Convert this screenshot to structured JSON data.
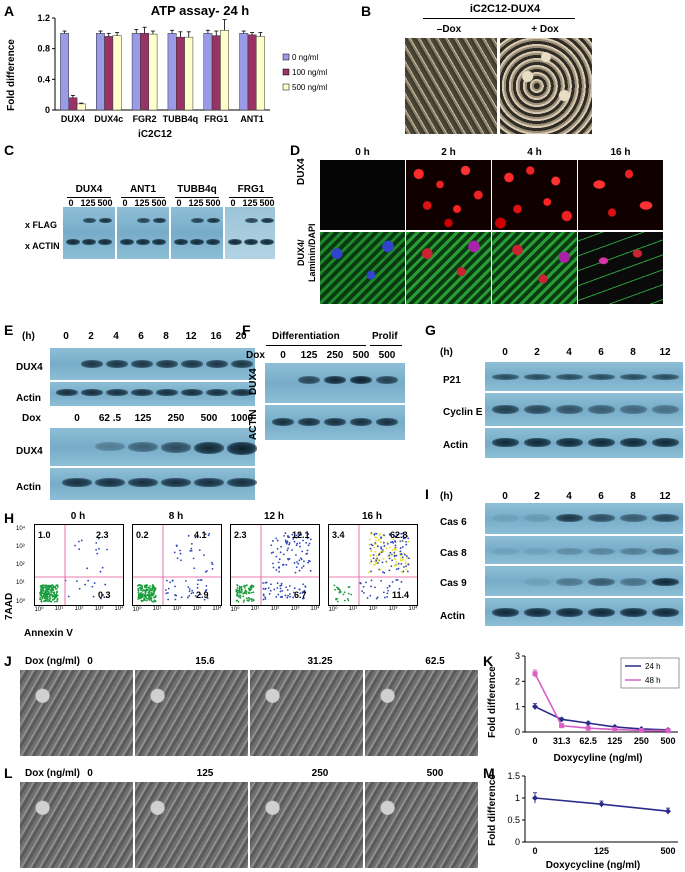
{
  "panels": {
    "A": {
      "label": "A"
    },
    "B": {
      "label": "B"
    },
    "C": {
      "label": "C"
    },
    "D": {
      "label": "D"
    },
    "E": {
      "label": "E"
    },
    "F": {
      "label": "F"
    },
    "G": {
      "label": "G"
    },
    "H": {
      "label": "H"
    },
    "I": {
      "label": "I"
    },
    "J": {
      "label": "J"
    },
    "K": {
      "label": "K"
    },
    "L": {
      "label": "L"
    },
    "M": {
      "label": "M"
    }
  },
  "chart_data": [
    {
      "panel": "A",
      "type": "bar",
      "title": "ATP assay- 24 h",
      "categories": [
        "DUX4",
        "DUX4c",
        "FGR2",
        "TUBB4q",
        "FRG1",
        "ANT1"
      ],
      "xlabel": "iC2C12",
      "ylabel": "Fold difference",
      "ylim": [
        0,
        1.2
      ],
      "yticks": [
        "0",
        "0.4",
        "0.8",
        "1.2"
      ],
      "legend": "right",
      "series": [
        {
          "name": "0 ng/ml",
          "color": "#9a9ae6",
          "values": [
            1.0,
            1.0,
            1.0,
            1.0,
            1.0,
            1.0
          ],
          "err": [
            0.03,
            0.03,
            0.05,
            0.04,
            0.04,
            0.03
          ]
        },
        {
          "name": "100 ng/ml",
          "color": "#993366",
          "values": [
            0.16,
            0.96,
            1.0,
            0.95,
            0.97,
            0.98
          ],
          "err": [
            0.03,
            0.04,
            0.08,
            0.07,
            0.06,
            0.03
          ]
        },
        {
          "name": "500 ng/ml",
          "color": "#ffffcc",
          "values": [
            0.08,
            0.97,
            0.99,
            0.95,
            1.04,
            0.96
          ],
          "err": [
            0.01,
            0.04,
            0.04,
            0.07,
            0.14,
            0.05
          ]
        }
      ]
    },
    {
      "panel": "K",
      "type": "line",
      "categories": [
        "0",
        "31.3",
        "62.5",
        "125",
        "250",
        "500"
      ],
      "xlabel": "Doxycyline (ng/ml)",
      "ylabel": "Fold difference",
      "ylim": [
        0,
        3
      ],
      "yticks": [
        "0",
        "1",
        "2",
        "3"
      ],
      "legend": "top-right",
      "series": [
        {
          "name": "24 h",
          "color": "#2b2b8c",
          "values": [
            1.0,
            0.5,
            0.35,
            0.2,
            0.12,
            0.08
          ],
          "err": [
            0.12,
            0.05,
            0.04,
            0.03,
            0.02,
            0.02
          ]
        },
        {
          "name": "48 h",
          "color": "#d85fc8",
          "values": [
            2.3,
            0.25,
            0.15,
            0.1,
            0.06,
            0.05
          ],
          "err": [
            0.15,
            0.04,
            0.03,
            0.02,
            0.02,
            0.02
          ]
        }
      ]
    },
    {
      "panel": "M",
      "type": "line",
      "categories": [
        "0",
        "125",
        "500"
      ],
      "xlabel": "Doxycycline (ng/ml)",
      "ylabel": "Fold difference",
      "ylim": [
        0,
        1.5
      ],
      "yticks": [
        "0",
        "0.5",
        "1",
        "1.5"
      ],
      "series": [
        {
          "name": "",
          "color": "#2b2b8c",
          "values": [
            1.0,
            0.86,
            0.7
          ],
          "err": [
            0.12,
            0.07,
            0.07
          ]
        }
      ]
    }
  ],
  "B": {
    "title": "iC2C12-DUX4",
    "cols": [
      "–Dox",
      "+ Dox"
    ]
  },
  "C": {
    "groups": [
      "DUX4",
      "ANT1",
      "TUBB4q",
      "FRG1"
    ],
    "doses": [
      "0",
      "125",
      "500"
    ],
    "rows": [
      "x FLAG",
      "x ACTIN"
    ]
  },
  "D": {
    "times": [
      "0 h",
      "2 h",
      "4 h",
      "16 h"
    ],
    "rows": [
      "DUX4",
      "DUX4/\nLaminin/DAPI"
    ],
    "row2a": "DUX4/",
    "row2b": "Laminin/DAPI"
  },
  "E": {
    "unit": "(h)",
    "times": [
      "0",
      "2",
      "4",
      "6",
      "8",
      "12",
      "16",
      "20"
    ],
    "dox_label": "Dox",
    "doses": [
      "0",
      "62 .5",
      "125",
      "250",
      "500",
      "1000"
    ],
    "rows": [
      "DUX4",
      "Actin",
      "DUX4",
      "Actin"
    ]
  },
  "F": {
    "groups": [
      "Differentiation",
      "Prolif"
    ],
    "dox_label": "Dox",
    "doses": [
      "0",
      "125",
      "250",
      "500",
      "500"
    ],
    "rows": [
      "DUX4",
      "ACTIN"
    ]
  },
  "G": {
    "unit": "(h)",
    "times": [
      "0",
      "2",
      "4",
      "6",
      "8",
      "12"
    ],
    "rows": [
      "P21",
      "Cyclin E",
      "Actin"
    ]
  },
  "H": {
    "times": [
      "0 h",
      "8 h",
      "12 h",
      "16 h"
    ],
    "ylabel": "7AAD",
    "xlabel": "Annexin V",
    "ticks": [
      "10⁰",
      "10¹",
      "10²",
      "10³",
      "10⁴"
    ],
    "quadrants": [
      [
        "1.0",
        "2.3",
        "0.3"
      ],
      [
        "0.2",
        "4.1",
        "2.9"
      ],
      [
        "2.3",
        "12.1",
        "6.7"
      ],
      [
        "3.4",
        "62.8",
        "11.4"
      ]
    ]
  },
  "I": {
    "unit": "(h)",
    "times": [
      "0",
      "2",
      "4",
      "6",
      "8",
      "12"
    ],
    "rows": [
      "Cas 6",
      "Cas 8",
      "Cas 9",
      "Actin"
    ]
  },
  "J": {
    "dox_label": "Dox (ng/ml)",
    "doses": [
      "0",
      "15.6",
      "31.25",
      "62.5"
    ]
  },
  "L": {
    "dox_label": "Dox (ng/ml)",
    "doses": [
      "0",
      "125",
      "250",
      "500"
    ]
  }
}
